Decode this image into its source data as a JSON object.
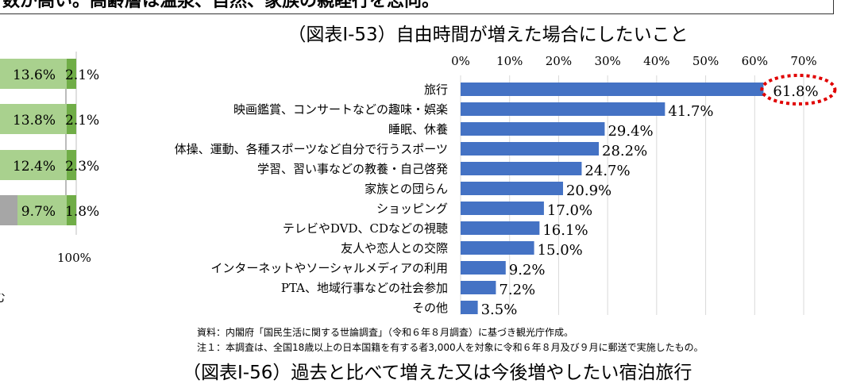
{
  "headline": "数が高い。高齢層は温泉、自然、家族の親睦行を志向。",
  "left_chart": {
    "rows": [
      {
        "light": "13.6%",
        "dark": "2.1%"
      },
      {
        "light": "13.8%",
        "dark": "2.1%"
      },
      {
        "light": "12.4%",
        "dark": "2.3%"
      },
      {
        "light": "9.7%",
        "dark": "1.8%"
      }
    ],
    "axis_label": "100%",
    "partial_text": "む",
    "colors": {
      "light": "#a9d18e",
      "dark": "#70ad47",
      "gray": "#a6a6a6"
    }
  },
  "chart_data": {
    "type": "bar",
    "orientation": "horizontal",
    "title": "（図表Ⅰ-53）自由時間が増えた場合にしたいこと",
    "categories": [
      "旅行",
      "映画鑑賞、コンサートなどの趣味・娯楽",
      "睡眠、休養",
      "体操、運動、各種スポーツなど自分で行うスポーツ",
      "学習、習い事などの教養・自己啓発",
      "家族との団らん",
      "ショッピング",
      "テレビやDVD、CDなどの視聴",
      "友人や恋人との交際",
      "インターネットやソーシャルメディアの利用",
      "PTA、地域行事などの社会参加",
      "その他"
    ],
    "values": [
      61.8,
      41.7,
      29.4,
      28.2,
      24.7,
      20.9,
      17.0,
      16.1,
      15.0,
      9.2,
      7.2,
      3.5
    ],
    "data_labels": [
      "61.8%",
      "41.7%",
      "29.4%",
      "28.2%",
      "24.7%",
      "20.9%",
      "17.0%",
      "16.1%",
      "15.0%",
      "9.2%",
      "7.2%",
      "3.5%"
    ],
    "xlim": [
      0,
      70
    ],
    "tick_labels": [
      "0%",
      "10%",
      "20%",
      "30%",
      "40%",
      "50%",
      "60%",
      "70%"
    ],
    "grid": true,
    "axis_position": "top",
    "bar_color": "#4472c4",
    "highlight": {
      "category": "旅行",
      "color": "#e00000",
      "style": "dotted-ellipse"
    }
  },
  "notes": [
    "資料：内閣府「国民生活に関する世論調査」（令和６年８月調査）に基づき観光庁作成。",
    "注１：本調査は、全国18歳以上の日本国籍を有する者3,000人を対象に令和６年８月及び９月に郵送で実施したもの。"
  ],
  "next_title": "（図表Ⅰ-56）過去と比べて増えた又は今後増やしたい宿泊旅行"
}
